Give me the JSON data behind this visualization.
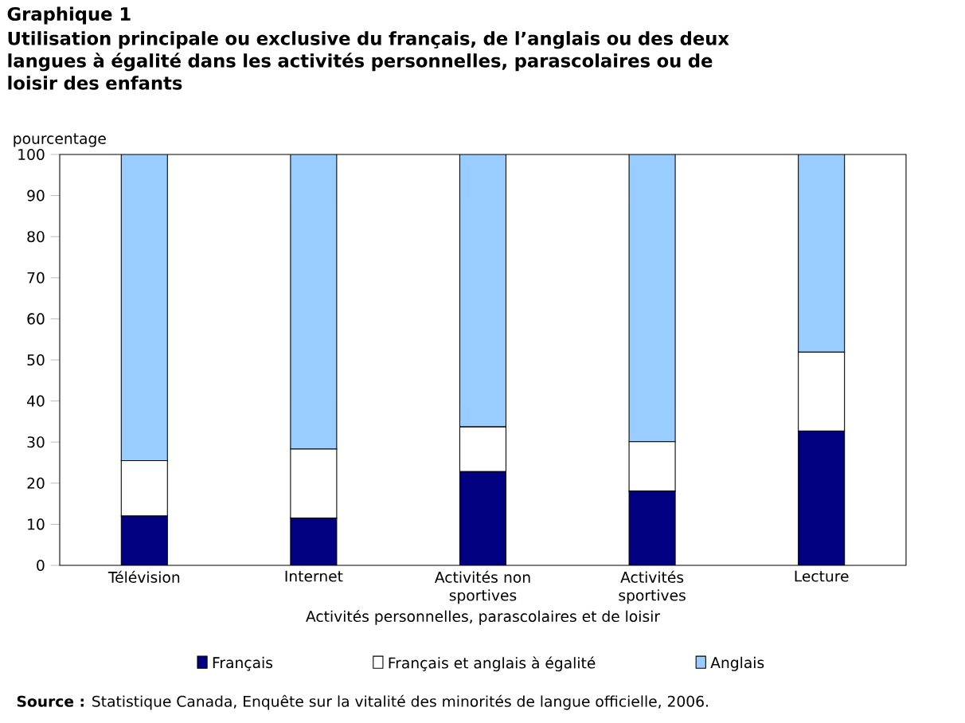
{
  "chart_data": {
    "type": "bar",
    "stacked": true,
    "title": "Graphique 1",
    "subtitle": "Utilisation principale ou exclusive du français, de l’anglais ou des deux langues à égalité dans les activités personnelles, parascolaires ou de loisir des enfants",
    "ylabel": "pourcentage",
    "xlabel": "Activités personnelles, parascolaires et de loisir",
    "categories": [
      "Télévision",
      "Internet",
      "Activités non sportives",
      "Activités sportives",
      "Lecture"
    ],
    "series": [
      {
        "name": "Français",
        "color": "#000080",
        "values": [
          12.0,
          11.5,
          22.8,
          18.1,
          32.7
        ]
      },
      {
        "name": "Français et anglais à égalité",
        "color": "#ffffff",
        "values": [
          13.5,
          16.8,
          10.9,
          12.0,
          19.2
        ]
      },
      {
        "name": "Anglais",
        "color": "#99ccff",
        "values": [
          74.5,
          71.7,
          66.3,
          69.9,
          48.1
        ]
      }
    ],
    "ylim": [
      0,
      100
    ],
    "yticks": [
      0,
      10,
      20,
      30,
      40,
      50,
      60,
      70,
      80,
      90,
      100
    ],
    "grid": false,
    "legend": "bottom",
    "annotations": [
      "**Source :** Statistique Canada, Enquête sur la vitalité des minorités de langue officielle, 2006."
    ]
  }
}
